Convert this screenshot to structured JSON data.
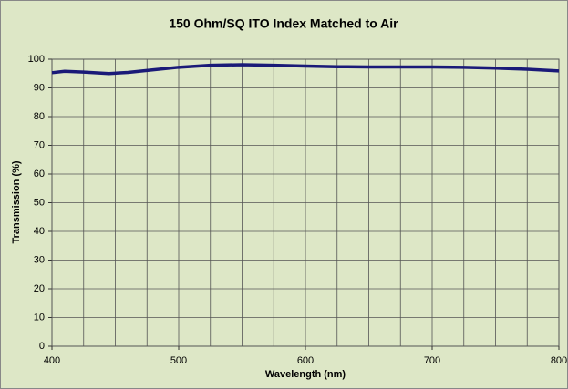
{
  "chart_data": {
    "type": "line",
    "title": "150 Ohm/SQ ITO Index Matched to Air",
    "x_label": "Wavelength (nm)",
    "y_label": "Transmission (%)",
    "xlim": [
      400,
      800
    ],
    "xticks": [
      400,
      500,
      600,
      700,
      800
    ],
    "xgrid": [
      400,
      425,
      450,
      475,
      500,
      525,
      550,
      575,
      600,
      625,
      650,
      675,
      700,
      725,
      750,
      775,
      800
    ],
    "ylim": [
      0,
      100
    ],
    "yticks": [
      0,
      10,
      20,
      30,
      40,
      50,
      60,
      70,
      80,
      90,
      100
    ],
    "grid": true,
    "x": [
      400,
      410,
      425,
      445,
      460,
      480,
      500,
      525,
      550,
      575,
      600,
      625,
      650,
      675,
      700,
      725,
      750,
      775,
      800
    ],
    "series": [
      {
        "color": "#1a1a78",
        "values": [
          95.3,
          95.8,
          95.5,
          95.0,
          95.4,
          96.3,
          97.2,
          97.9,
          98.1,
          97.9,
          97.6,
          97.4,
          97.3,
          97.3,
          97.3,
          97.2,
          96.9,
          96.5,
          95.9
        ]
      }
    ]
  }
}
